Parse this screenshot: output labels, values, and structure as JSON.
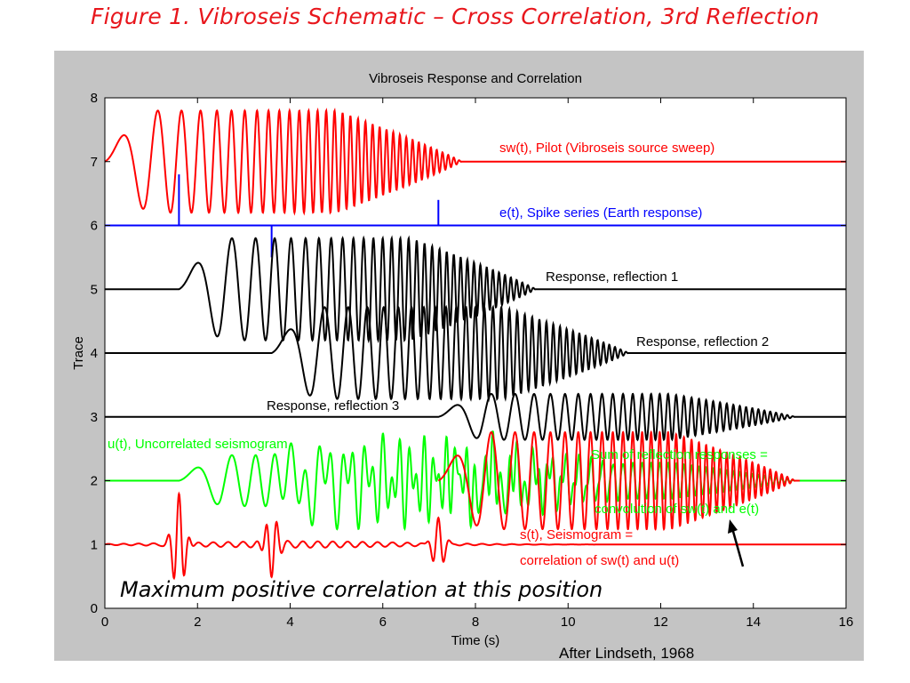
{
  "slide_title": "Figure 1.  Vibroseis Schematic – Cross Correlation, 3rd Reflection",
  "credit": "After Lindseth, 1968",
  "chart_data": {
    "type": "line",
    "title": "Vibroseis Response and Correlation",
    "xlabel": "Time (s)",
    "ylabel": "Trace",
    "xlim": [
      0,
      16
    ],
    "ylim": [
      0,
      8
    ],
    "x_ticks": [
      0,
      2,
      4,
      6,
      8,
      10,
      12,
      14,
      16
    ],
    "y_ticks": [
      0,
      1,
      2,
      3,
      4,
      5,
      6,
      7,
      8
    ],
    "grid": false,
    "colors": {
      "red": "#ff0000",
      "blue": "#0000ff",
      "black": "#000000",
      "green": "#00ff00"
    },
    "spikes": [
      {
        "t": 1.6,
        "amplitude": 0.8
      },
      {
        "t": 3.6,
        "amplitude": -0.5
      },
      {
        "t": 7.2,
        "amplitude": 0.4
      }
    ],
    "series": [
      {
        "name": "sw(t), Pilot (Vibroseis source sweep)",
        "baseline": 7,
        "color": "#ff0000",
        "start": 0,
        "end": 7.7
      },
      {
        "name": "e(t), Spike series (Earth response)",
        "baseline": 6,
        "color": "#0000ff"
      },
      {
        "name": "Response, reflection 1",
        "baseline": 5,
        "color": "#000000",
        "start": 1.6,
        "end": 9.3
      },
      {
        "name": "Response, reflection 2",
        "baseline": 4,
        "color": "#000000",
        "start": 3.6,
        "end": 11.3
      },
      {
        "name": "Response, reflection 3",
        "baseline": 3,
        "color": "#000000",
        "start": 7.2,
        "end": 14.9
      },
      {
        "name": "u(t), Uncorrelated seismogram",
        "baseline": 2,
        "color": "#00ff00"
      },
      {
        "name": "Sum of reflection responses = convolution of sw(t) and e(t)",
        "baseline": 2,
        "color": "#ff0000"
      },
      {
        "name": "s(t), Seismogram = correlation of sw(t) and u(t)",
        "baseline": 1,
        "color": "#ff0000"
      }
    ],
    "annotations": {
      "sweep": "sw(t), Pilot (Vibroseis source sweep)",
      "spike": "e(t), Spike series (Earth response)",
      "r1": "Response, reflection 1",
      "r2": "Response, reflection 2",
      "r3": "Response, reflection 3",
      "u": "u(t), Uncorrelated seismogram",
      "sum1": "Sum of reflection responses =",
      "sum2": "convolution of sw(t) and e(t)",
      "s1": "s(t), Seismogram =",
      "s2": "correlation of sw(t) and u(t)",
      "max_note": "Maximum positive correlation at this position"
    }
  }
}
